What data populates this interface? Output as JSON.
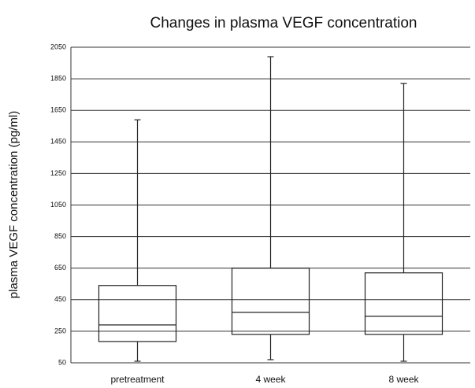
{
  "chart_data": {
    "type": "box",
    "title": "Changes in plasma VEGF concentration",
    "ylabel": "plasma VEGF concentration (pg/ml)",
    "categories": [
      "pretreatment",
      "4 week",
      "8 week"
    ],
    "series": [
      {
        "color": "#222222",
        "min": [
          60,
          70,
          60
        ],
        "q1": [
          185,
          230,
          230
        ],
        "median": [
          290,
          370,
          345
        ],
        "q3": [
          540,
          650,
          620
        ],
        "max": [
          1590,
          1990,
          1820
        ]
      }
    ],
    "ylim": [
      50,
      2050
    ],
    "yticks": [
      50,
      250,
      450,
      650,
      850,
      1050,
      1250,
      1450,
      1650,
      1850,
      2050
    ],
    "grid": true
  }
}
